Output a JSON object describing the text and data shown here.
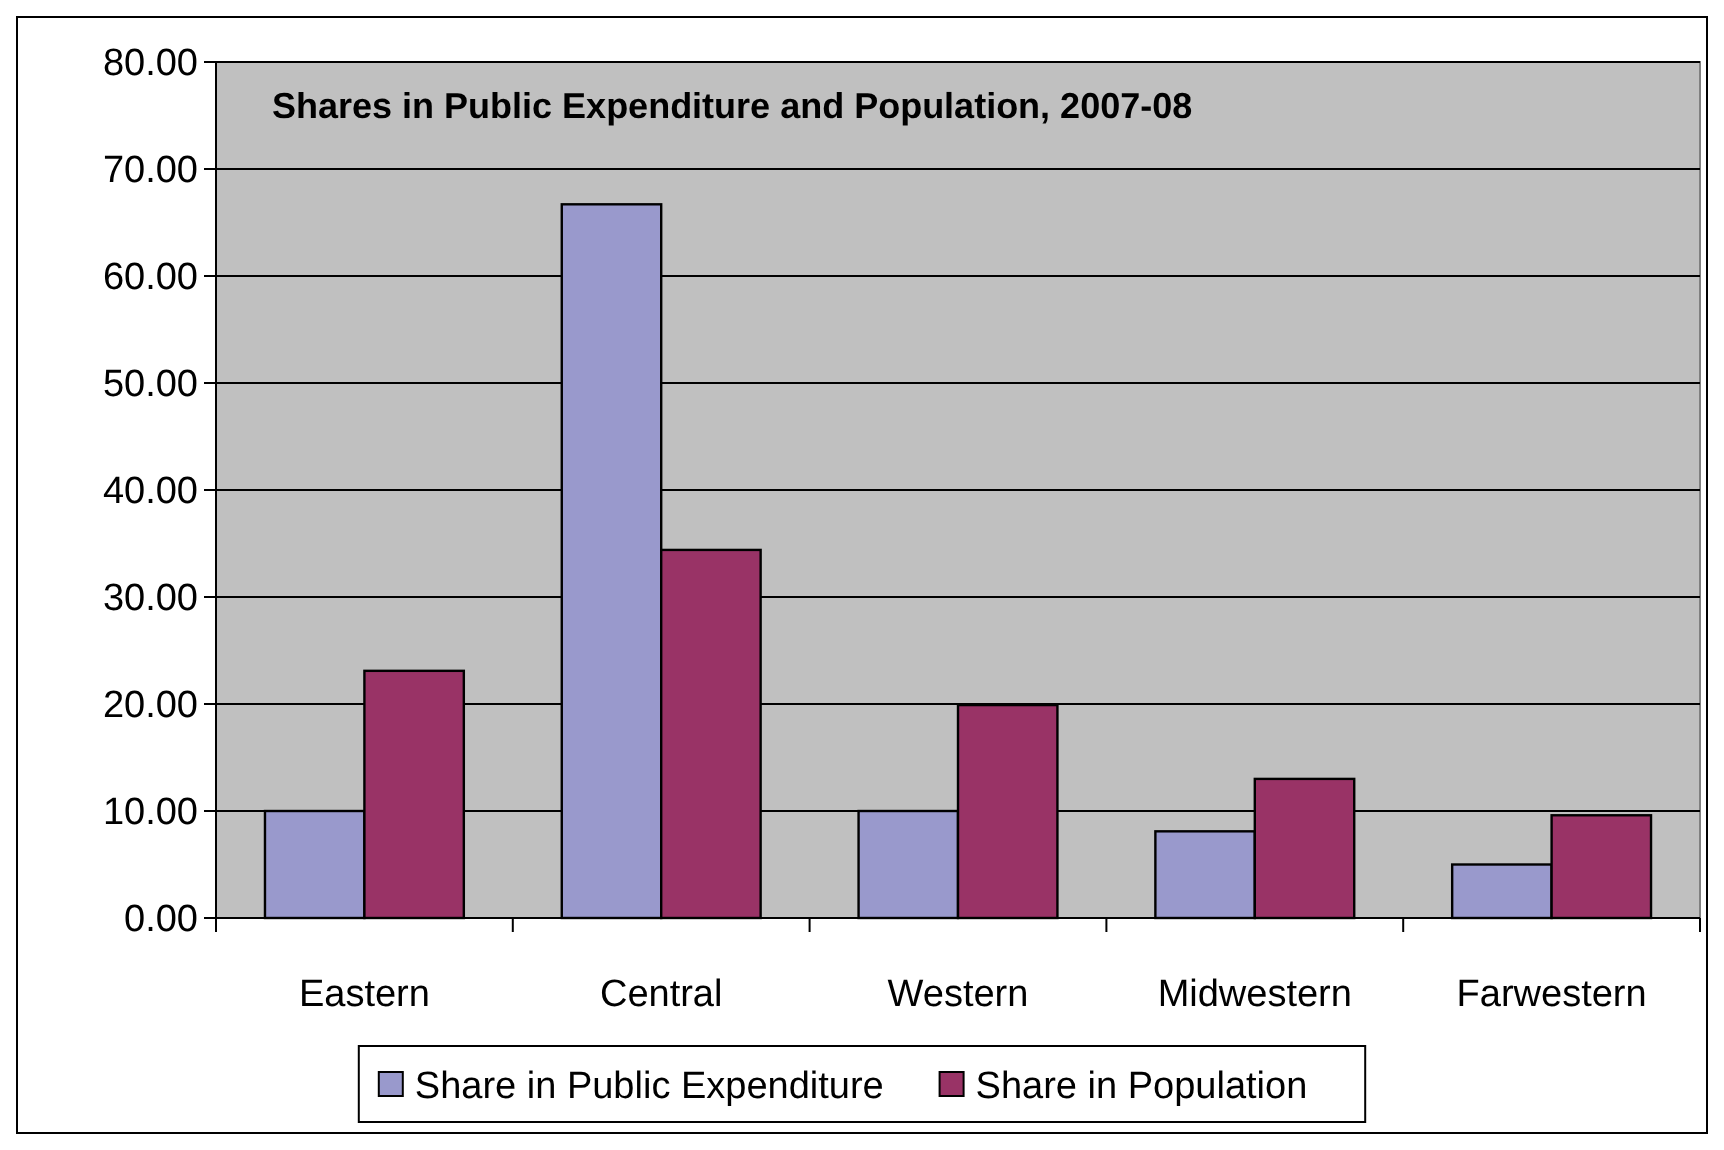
{
  "chart_data": {
    "type": "bar",
    "title": "Shares in Public Expenditure and Population, 2007-08",
    "categories": [
      "Eastern",
      "Central",
      "Western",
      "Midwestern",
      "Farwestern"
    ],
    "series": [
      {
        "name": "Share in Public Expenditure",
        "color": "#9999cc",
        "values": [
          10.0,
          66.7,
          10.0,
          8.1,
          5.0
        ]
      },
      {
        "name": "Share in Population",
        "color": "#993366",
        "values": [
          23.1,
          34.4,
          19.9,
          13.0,
          9.6
        ]
      }
    ],
    "ylim": [
      0,
      80
    ],
    "yticks": [
      {
        "value": 0,
        "label": "0.00"
      },
      {
        "value": 10,
        "label": "10.00"
      },
      {
        "value": 20,
        "label": "20.00"
      },
      {
        "value": 30,
        "label": "30.00"
      },
      {
        "value": 40,
        "label": "40.00"
      },
      {
        "value": 50,
        "label": "50.00"
      },
      {
        "value": 60,
        "label": "60.00"
      },
      {
        "value": 70,
        "label": "70.00"
      },
      {
        "value": 80,
        "label": "80.00"
      }
    ],
    "grid": "y",
    "legend": "bottom"
  }
}
